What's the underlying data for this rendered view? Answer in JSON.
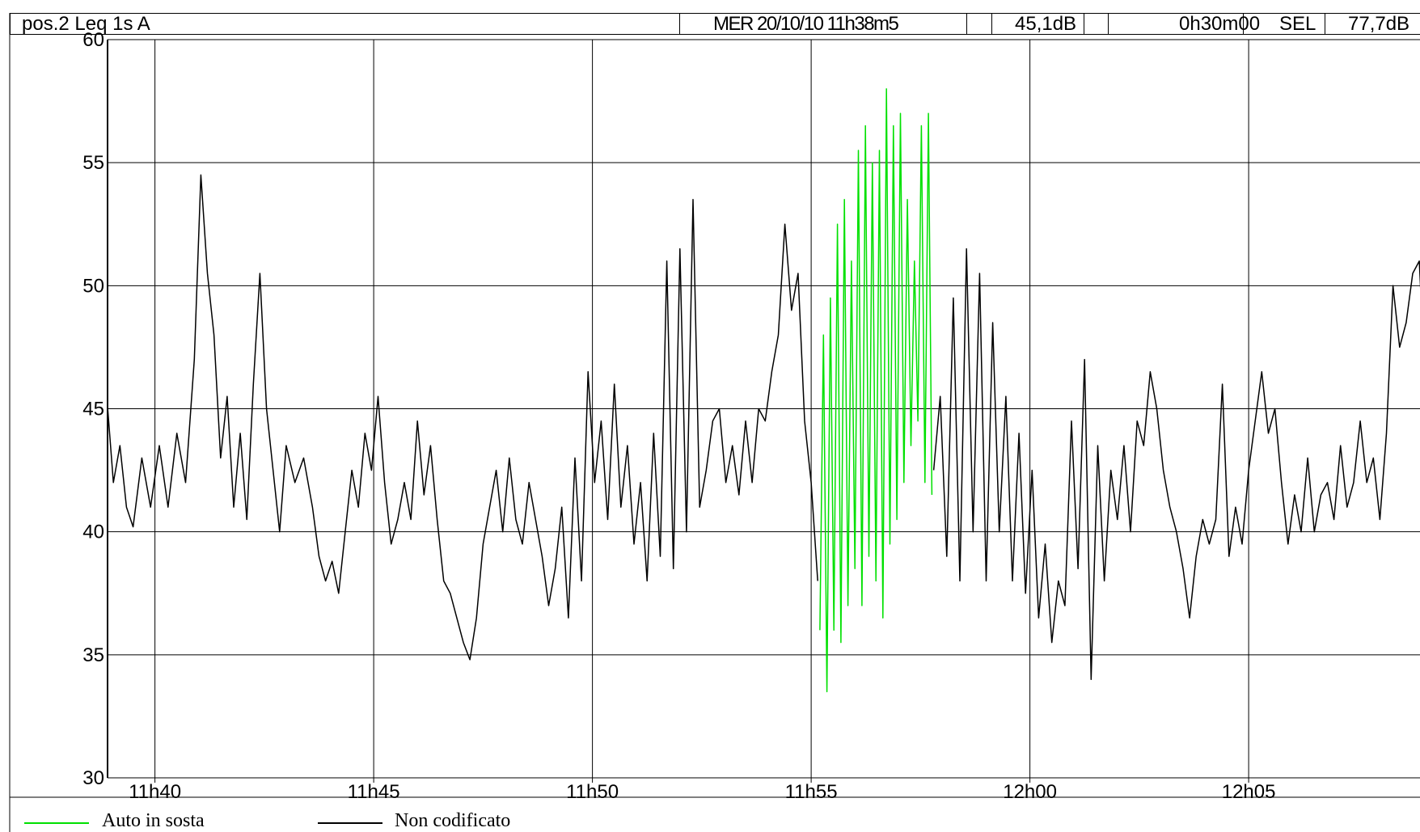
{
  "header": {
    "title": "pos.2  Leq 1s  A",
    "datetime": "MER 20/10/10 11h38m5",
    "level": "45,1dB",
    "duration": "0h30m00",
    "sel_label": "SEL",
    "sel_value": "77,7dB"
  },
  "chart_data": {
    "type": "line",
    "x_unit": "minute of day",
    "xlim": [
      "11h38m55",
      "12h08m55"
    ],
    "ylim": [
      30,
      60
    ],
    "yticks": [
      30,
      35,
      40,
      45,
      50,
      55,
      60
    ],
    "ytick_labels": [
      "30",
      "35",
      "40",
      "45",
      "50",
      "55",
      "60"
    ],
    "xticks": [
      700,
      705,
      710,
      715,
      720,
      725
    ],
    "xtick_labels": [
      "11h40",
      "11h45",
      "11h50",
      "11h55",
      "12h00",
      "12h05"
    ],
    "grid": true,
    "legend": "bottom",
    "series": [
      {
        "name": "Non codificato",
        "color": "#000000",
        "segments": [
          [
            [
              698.92,
              45.0
            ],
            [
              699.05,
              42.0
            ],
            [
              699.2,
              43.5
            ],
            [
              699.35,
              41.0
            ],
            [
              699.5,
              40.2
            ],
            [
              699.7,
              43.0
            ],
            [
              699.9,
              41.0
            ],
            [
              700.1,
              43.5
            ],
            [
              700.3,
              41.0
            ],
            [
              700.5,
              44.0
            ],
            [
              700.7,
              42.0
            ],
            [
              700.9,
              47.0
            ],
            [
              701.05,
              54.5
            ],
            [
              701.2,
              50.5
            ],
            [
              701.35,
              48.0
            ],
            [
              701.5,
              43.0
            ],
            [
              701.65,
              45.5
            ],
            [
              701.8,
              41.0
            ],
            [
              701.95,
              44.0
            ],
            [
              702.1,
              40.5
            ],
            [
              702.25,
              46.0
            ],
            [
              702.4,
              50.5
            ],
            [
              702.55,
              45.0
            ],
            [
              702.7,
              42.5
            ],
            [
              702.85,
              40.0
            ],
            [
              703.0,
              43.5
            ],
            [
              703.2,
              42.0
            ],
            [
              703.4,
              43.0
            ],
            [
              703.6,
              41.0
            ],
            [
              703.75,
              39.0
            ],
            [
              703.9,
              38.0
            ],
            [
              704.05,
              38.8
            ],
            [
              704.2,
              37.5
            ],
            [
              704.35,
              40.0
            ],
            [
              704.5,
              42.5
            ],
            [
              704.65,
              41.0
            ],
            [
              704.8,
              44.0
            ],
            [
              704.95,
              42.5
            ],
            [
              705.1,
              45.5
            ],
            [
              705.25,
              42.0
            ],
            [
              705.4,
              39.5
            ],
            [
              705.55,
              40.5
            ],
            [
              705.7,
              42.0
            ],
            [
              705.85,
              40.5
            ],
            [
              706.0,
              44.5
            ],
            [
              706.15,
              41.5
            ],
            [
              706.3,
              43.5
            ],
            [
              706.45,
              40.5
            ],
            [
              706.6,
              38.0
            ],
            [
              706.75,
              37.5
            ],
            [
              706.9,
              36.5
            ],
            [
              707.05,
              35.5
            ],
            [
              707.2,
              34.8
            ],
            [
              707.35,
              36.5
            ],
            [
              707.5,
              39.5
            ],
            [
              707.65,
              41.0
            ],
            [
              707.8,
              42.5
            ],
            [
              707.95,
              40.0
            ],
            [
              708.1,
              43.0
            ],
            [
              708.25,
              40.5
            ],
            [
              708.4,
              39.5
            ],
            [
              708.55,
              42.0
            ],
            [
              708.7,
              40.5
            ],
            [
              708.85,
              39.0
            ],
            [
              709.0,
              37.0
            ],
            [
              709.15,
              38.5
            ],
            [
              709.3,
              41.0
            ],
            [
              709.45,
              36.5
            ],
            [
              709.6,
              43.0
            ],
            [
              709.75,
              38.0
            ],
            [
              709.9,
              46.5
            ],
            [
              710.05,
              42.0
            ],
            [
              710.2,
              44.5
            ],
            [
              710.35,
              40.5
            ],
            [
              710.5,
              46.0
            ],
            [
              710.65,
              41.0
            ],
            [
              710.8,
              43.5
            ],
            [
              710.95,
              39.5
            ],
            [
              711.1,
              42.0
            ],
            [
              711.25,
              38.0
            ],
            [
              711.4,
              44.0
            ],
            [
              711.55,
              39.0
            ],
            [
              711.7,
              51.0
            ],
            [
              711.85,
              38.5
            ],
            [
              712.0,
              51.5
            ],
            [
              712.15,
              40.0
            ],
            [
              712.3,
              53.5
            ],
            [
              712.45,
              41.0
            ],
            [
              712.6,
              42.5
            ],
            [
              712.75,
              44.5
            ],
            [
              712.9,
              45.0
            ],
            [
              713.05,
              42.0
            ],
            [
              713.2,
              43.5
            ],
            [
              713.35,
              41.5
            ],
            [
              713.5,
              44.5
            ],
            [
              713.65,
              42.0
            ],
            [
              713.8,
              45.0
            ],
            [
              713.95,
              44.5
            ],
            [
              714.1,
              46.5
            ],
            [
              714.25,
              48.0
            ],
            [
              714.4,
              52.5
            ],
            [
              714.55,
              49.0
            ],
            [
              714.7,
              50.5
            ],
            [
              714.85,
              44.5
            ],
            [
              715.0,
              42.0
            ],
            [
              715.15,
              38.0
            ]
          ],
          [
            [
              717.8,
              42.5
            ],
            [
              717.95,
              45.5
            ],
            [
              718.1,
              39.0
            ],
            [
              718.25,
              49.5
            ],
            [
              718.4,
              38.0
            ],
            [
              718.55,
              51.5
            ],
            [
              718.7,
              40.0
            ],
            [
              718.85,
              50.5
            ],
            [
              719.0,
              38.0
            ],
            [
              719.15,
              48.5
            ],
            [
              719.3,
              40.0
            ],
            [
              719.45,
              45.5
            ],
            [
              719.6,
              38.0
            ],
            [
              719.75,
              44.0
            ],
            [
              719.9,
              37.5
            ],
            [
              720.05,
              42.5
            ],
            [
              720.2,
              36.5
            ],
            [
              720.35,
              39.5
            ],
            [
              720.5,
              35.5
            ],
            [
              720.65,
              38.0
            ],
            [
              720.8,
              37.0
            ],
            [
              720.95,
              44.5
            ],
            [
              721.1,
              38.5
            ],
            [
              721.25,
              47.0
            ],
            [
              721.4,
              34.0
            ],
            [
              721.55,
              43.5
            ],
            [
              721.7,
              38.0
            ],
            [
              721.85,
              42.5
            ],
            [
              722.0,
              40.5
            ],
            [
              722.15,
              43.5
            ],
            [
              722.3,
              40.0
            ],
            [
              722.45,
              44.5
            ],
            [
              722.6,
              43.5
            ],
            [
              722.75,
              46.5
            ],
            [
              722.9,
              45.0
            ],
            [
              723.05,
              42.5
            ],
            [
              723.2,
              41.0
            ],
            [
              723.35,
              40.0
            ],
            [
              723.5,
              38.5
            ],
            [
              723.65,
              36.5
            ],
            [
              723.8,
              39.0
            ],
            [
              723.95,
              40.5
            ],
            [
              724.1,
              39.5
            ],
            [
              724.25,
              40.5
            ],
            [
              724.4,
              46.0
            ],
            [
              724.55,
              39.0
            ],
            [
              724.7,
              41.0
            ],
            [
              724.85,
              39.5
            ],
            [
              725.0,
              42.5
            ],
            [
              725.15,
              44.5
            ],
            [
              725.3,
              46.5
            ],
            [
              725.45,
              44.0
            ],
            [
              725.6,
              45.0
            ],
            [
              725.75,
              42.0
            ],
            [
              725.9,
              39.5
            ],
            [
              726.05,
              41.5
            ],
            [
              726.2,
              40.0
            ],
            [
              726.35,
              43.0
            ],
            [
              726.5,
              40.0
            ],
            [
              726.65,
              41.5
            ],
            [
              726.8,
              42.0
            ],
            [
              726.95,
              40.5
            ],
            [
              727.1,
              43.5
            ],
            [
              727.25,
              41.0
            ],
            [
              727.4,
              42.0
            ],
            [
              727.55,
              44.5
            ],
            [
              727.7,
              42.0
            ],
            [
              727.85,
              43.0
            ],
            [
              728.0,
              40.5
            ],
            [
              728.15,
              44.0
            ],
            [
              728.3,
              50.0
            ],
            [
              728.45,
              47.5
            ],
            [
              728.6,
              48.5
            ],
            [
              728.75,
              50.5
            ],
            [
              728.9,
              51.0
            ],
            [
              728.94,
              49.5
            ]
          ]
        ]
      },
      {
        "name": "Auto in sosta",
        "color": "#00e000",
        "segments": [
          [
            [
              715.2,
              36.0
            ],
            [
              715.28,
              48.0
            ],
            [
              715.36,
              33.5
            ],
            [
              715.44,
              49.5
            ],
            [
              715.52,
              36.0
            ],
            [
              715.6,
              52.5
            ],
            [
              715.68,
              35.5
            ],
            [
              715.76,
              53.5
            ],
            [
              715.84,
              37.0
            ],
            [
              715.92,
              51.0
            ],
            [
              716.0,
              38.5
            ],
            [
              716.08,
              55.5
            ],
            [
              716.16,
              37.0
            ],
            [
              716.24,
              56.5
            ],
            [
              716.32,
              39.0
            ],
            [
              716.4,
              55.0
            ],
            [
              716.48,
              38.0
            ],
            [
              716.56,
              55.5
            ],
            [
              716.64,
              36.5
            ],
            [
              716.72,
              58.0
            ],
            [
              716.8,
              39.5
            ],
            [
              716.88,
              56.5
            ],
            [
              716.96,
              40.5
            ],
            [
              717.04,
              57.0
            ],
            [
              717.12,
              42.0
            ],
            [
              717.2,
              53.5
            ],
            [
              717.28,
              43.5
            ],
            [
              717.36,
              51.0
            ],
            [
              717.44,
              44.5
            ],
            [
              717.52,
              56.5
            ],
            [
              717.6,
              42.0
            ],
            [
              717.68,
              57.0
            ],
            [
              717.76,
              41.5
            ]
          ]
        ]
      }
    ]
  },
  "legend": {
    "items": [
      {
        "label": "Auto in sosta",
        "color": "#00e000"
      },
      {
        "label": "Non codificato",
        "color": "#000000"
      }
    ]
  }
}
